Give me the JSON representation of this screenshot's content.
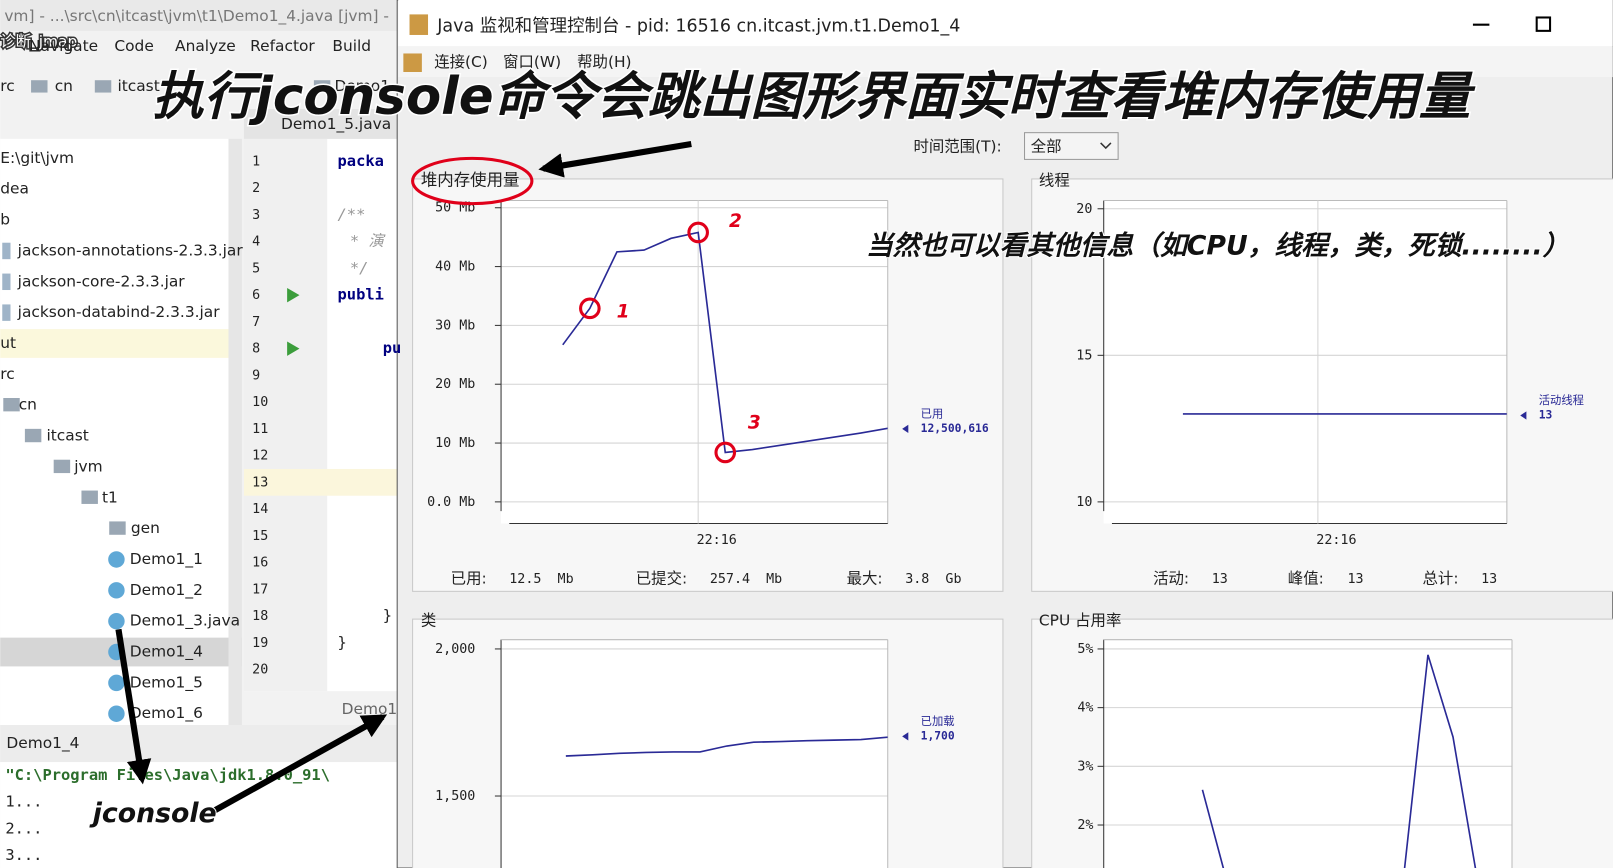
{
  "ide": {
    "window_title": "vm] - ...\\src\\cn\\itcast\\jvm\\t1\\Demo1_4.java [jvm] -",
    "video_title": "诊断_jmap",
    "menu": [
      "Navigate",
      "Code",
      "Analyze",
      "Refactor",
      "Build"
    ],
    "breadcrumb": [
      "rc",
      "cn",
      "itcast",
      "Demo1"
    ],
    "editor_tab": "Demo1_5.java",
    "tree": [
      "E:\\git\\jvm",
      "dea",
      "b",
      "jackson-annotations-2.3.3.jar",
      "jackson-core-2.3.3.jar",
      "jackson-databind-2.3.3.jar",
      "ut",
      "rc",
      "cn",
      "itcast",
      "jvm",
      "t1",
      "gen",
      "Demo1_1",
      "Demo1_2",
      "Demo1_3.java",
      "Demo1_4",
      "Demo1_5",
      "Demo1_6"
    ],
    "line_numbers": [
      1,
      2,
      3,
      4,
      5,
      6,
      7,
      8,
      9,
      10,
      11,
      12,
      13,
      14,
      15,
      16,
      17,
      18,
      19,
      20
    ],
    "code": [
      {
        "line": 1,
        "text": "packa"
      },
      {
        "line": 3,
        "text": "/**"
      },
      {
        "line": 4,
        "text": "* 演"
      },
      {
        "line": 5,
        "text": "*/"
      },
      {
        "line": 6,
        "text": "publi"
      },
      {
        "line": 8,
        "text": "pu"
      },
      {
        "line": 18,
        "text": "}"
      },
      {
        "line": 19,
        "text": "}"
      }
    ],
    "editor_footer": "Demo1",
    "run_tab": "Demo1_4",
    "console": [
      "\"C:\\Program Files\\Java\\jdk1.8.0_91\\",
      "1...",
      "2...",
      "3..."
    ]
  },
  "jconsole": {
    "title": "Java 监视和管理控制台 - pid: 16516 cn.itcast.jvm.t1.Demo1_4",
    "menu": [
      "连接(C)",
      "窗口(W)",
      "帮助(H)"
    ],
    "time_range_label": "时间范围(T):",
    "time_range": "全部",
    "charts": [
      {
        "type": "line",
        "title": "堆内存使用量",
        "color": "#2a2a96",
        "ylim": [
          0,
          50
        ],
        "yticks": [
          {
            "value": 0,
            "label": "0.0 Mb"
          },
          {
            "value": 10,
            "label": "10 Mb"
          },
          {
            "value": 20,
            "label": "20 Mb"
          },
          {
            "value": 30,
            "label": "30 Mb"
          },
          {
            "value": 40,
            "label": "40 Mb"
          },
          {
            "value": 50,
            "label": "50 Mb"
          }
        ],
        "categories": [
          null,
          null,
          null,
          null,
          null,
          "22:16",
          null,
          null,
          null,
          null,
          null,
          null,
          null
        ],
        "series": [
          {
            "name": "已用",
            "values": [
              26.7,
              32.9,
              42.5,
              42.8,
              44.8,
              45.8,
              8.4,
              8.9,
              9.6,
              10.3,
              11.0,
              11.7,
              12.500616
            ],
            "value_labels": [
              null,
              null,
              null,
              null,
              null,
              null,
              null,
              null,
              null,
              null,
              null,
              null,
              "12,500,616"
            ]
          }
        ],
        "stats": [
          {
            "label": "已用:",
            "value": "12.5  Mb"
          },
          {
            "label": "已提交:",
            "value": "257.4  Mb"
          },
          {
            "label": "最大:",
            "value": "3.8  Gb"
          }
        ]
      },
      {
        "type": "line",
        "title": "线程",
        "color": "#2a2a96",
        "ylim": [
          10,
          20
        ],
        "yticks": [
          10,
          15,
          20
        ],
        "categories": [
          null,
          null,
          null,
          null,
          null,
          "22:16",
          null,
          null,
          null,
          null,
          null,
          null,
          null
        ],
        "series": [
          {
            "name": "活动线程",
            "values": [
              13,
              13,
              13,
              13,
              13,
              13,
              13,
              13,
              13,
              13,
              13,
              13,
              13
            ]
          }
        ],
        "stats": [
          {
            "label": "活动:",
            "value": "13"
          },
          {
            "label": "峰值:",
            "value": "13"
          },
          {
            "label": "总计:",
            "value": "13"
          }
        ]
      },
      {
        "type": "line",
        "title": "类",
        "color": "#2a2a96",
        "ylim": [
          1250,
          2000
        ],
        "yticks": [
          {
            "value": 1500,
            "label": "1,500"
          },
          {
            "value": 2000,
            "label": "2,000"
          }
        ],
        "series": [
          {
            "name": "已加载",
            "values": [
              1636,
              1640,
              1645,
              1648,
              1650,
              1650,
              1670,
              1683,
              1685,
              1688,
              1690,
              1692,
              1700
            ],
            "value_labels": [
              null,
              null,
              null,
              null,
              null,
              null,
              null,
              null,
              null,
              null,
              null,
              null,
              "1,700"
            ]
          }
        ]
      },
      {
        "type": "line",
        "title": "CPU 占用率",
        "color": "#2a2a96",
        "ylim": [
          1.25,
          5
        ],
        "yticks": [
          {
            "value": 2,
            "label": "2%"
          },
          {
            "value": 3,
            "label": "3%"
          },
          {
            "value": 4,
            "label": "4%"
          },
          {
            "value": 5,
            "label": "5%"
          }
        ],
        "series": [
          {
            "values": [
              2.6,
              1.0,
              1.0,
              1.0,
              1.0,
              1.0,
              1.0,
              1.0,
              1.0,
              4.9,
              3.5,
              1.0
            ]
          }
        ]
      }
    ]
  },
  "annotations": {
    "headline": "执行jconsole命令会跳出图形界面实时查看堆内存使用量",
    "subhead": "当然也可以看其他信息（如CPU，线程，类，死锁........）",
    "command": "jconsole",
    "markers": [
      "1",
      "2",
      "3"
    ]
  }
}
